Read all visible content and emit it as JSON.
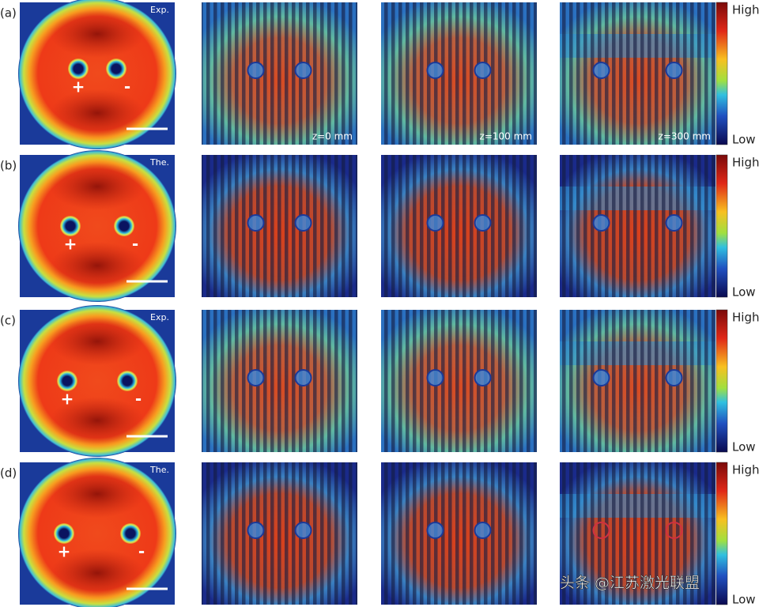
{
  "rows": [
    {
      "label": "(a)",
      "tag": "Exp.",
      "charges": [
        "+",
        "-"
      ],
      "z_labels": [
        "z=0 mm",
        "z=100 mm",
        "z=300 mm"
      ],
      "high": "High",
      "low": "Low"
    },
    {
      "label": "(b)",
      "tag": "The.",
      "charges": [
        "+",
        "-"
      ],
      "high": "High",
      "low": "Low"
    },
    {
      "label": "(c)",
      "tag": "Exp.",
      "charges": [
        "+",
        "-"
      ],
      "high": "High",
      "low": "Low"
    },
    {
      "label": "(d)",
      "tag": "The.",
      "charges": [
        "+",
        "-"
      ],
      "high": "High",
      "low": "Low"
    }
  ],
  "watermark": "头条 @江苏激光联盟"
}
